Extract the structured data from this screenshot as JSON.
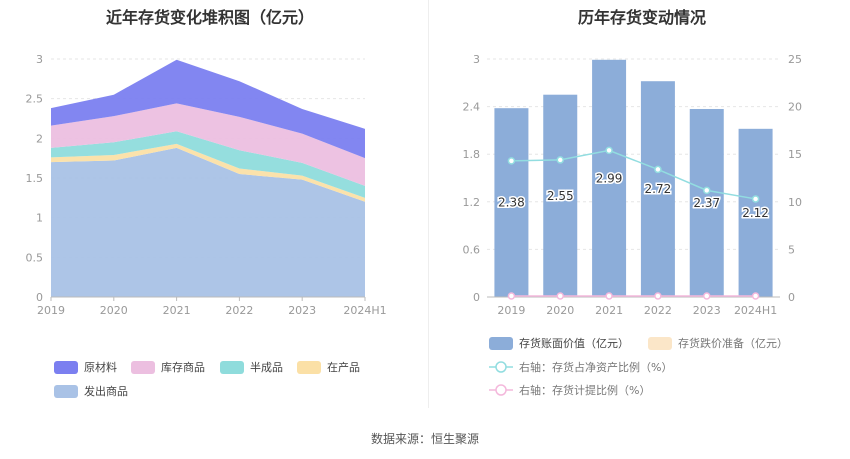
{
  "left_chart": {
    "title": "近年存货变化堆积图（亿元）"
  },
  "right_chart": {
    "title": "历年存货变动情况"
  },
  "footer": {
    "source": "数据来源：恒生聚源"
  },
  "colors": {
    "原材料": "#7b7ff0",
    "库存商品": "#ecbfe0",
    "半成品": "#8fdcdc",
    "在产品": "#fbe0a6",
    "发出商品": "#a9c2e6",
    "bar": "#8cadd9",
    "line_ratio": "#92dde0",
    "line_provision": "#f4b8dc"
  },
  "chart_data": [
    {
      "type": "area",
      "stacked": true,
      "title": "近年存货变化堆积图（亿元）",
      "x": [
        "2019",
        "2020",
        "2021",
        "2022",
        "2023",
        "2024H1"
      ],
      "ylim": [
        0,
        3
      ],
      "y_ticks": [
        "0",
        "0.5",
        "1",
        "1.5",
        "2",
        "2.5",
        "3"
      ],
      "series": [
        {
          "name": "发出商品",
          "values": [
            1.7,
            1.72,
            1.88,
            1.55,
            1.48,
            1.2
          ]
        },
        {
          "name": "在产品",
          "values": [
            0.06,
            0.07,
            0.05,
            0.07,
            0.05,
            0.05
          ]
        },
        {
          "name": "半成品",
          "values": [
            0.12,
            0.16,
            0.16,
            0.23,
            0.16,
            0.15
          ]
        },
        {
          "name": "库存商品",
          "values": [
            0.28,
            0.33,
            0.35,
            0.42,
            0.37,
            0.35
          ]
        },
        {
          "name": "原材料",
          "values": [
            0.22,
            0.27,
            0.55,
            0.45,
            0.31,
            0.37
          ]
        }
      ],
      "legend": [
        "原材料",
        "库存商品",
        "半成品",
        "在产品",
        "发出商品"
      ],
      "legend_position": "bottom"
    },
    {
      "type": "bar",
      "title": "历年存货变动情况",
      "categories": [
        "2019",
        "2020",
        "2021",
        "2022",
        "2023",
        "2024H1"
      ],
      "ylim": [
        0,
        3
      ],
      "y_ticks": [
        "0",
        "0.6",
        "1.2",
        "1.8",
        "2.4",
        "3"
      ],
      "y2lim": [
        0,
        25
      ],
      "y2_ticks": [
        "0",
        "5",
        "10",
        "15",
        "20",
        "25"
      ],
      "series": [
        {
          "name": "存货账面价值（亿元）",
          "kind": "bar",
          "axis": "left",
          "values": [
            2.38,
            2.55,
            2.99,
            2.72,
            2.37,
            2.12
          ],
          "labels": [
            "2.38",
            "2.55",
            "2.99",
            "2.72",
            "2.37",
            "2.12"
          ]
        },
        {
          "name": "存货跌价准备（亿元）",
          "kind": "bar",
          "axis": "left",
          "values": [
            0,
            0,
            0,
            0,
            0,
            0
          ]
        },
        {
          "name": "右轴：存货占净资产比例（%）",
          "kind": "line",
          "axis": "right",
          "values": [
            14.3,
            14.4,
            15.4,
            13.4,
            11.2,
            10.3
          ]
        },
        {
          "name": "右轴：存货计提比例（%）",
          "kind": "line",
          "axis": "right",
          "values": [
            0,
            0,
            0,
            0,
            0,
            0
          ]
        }
      ],
      "legend_position": "bottom"
    }
  ]
}
